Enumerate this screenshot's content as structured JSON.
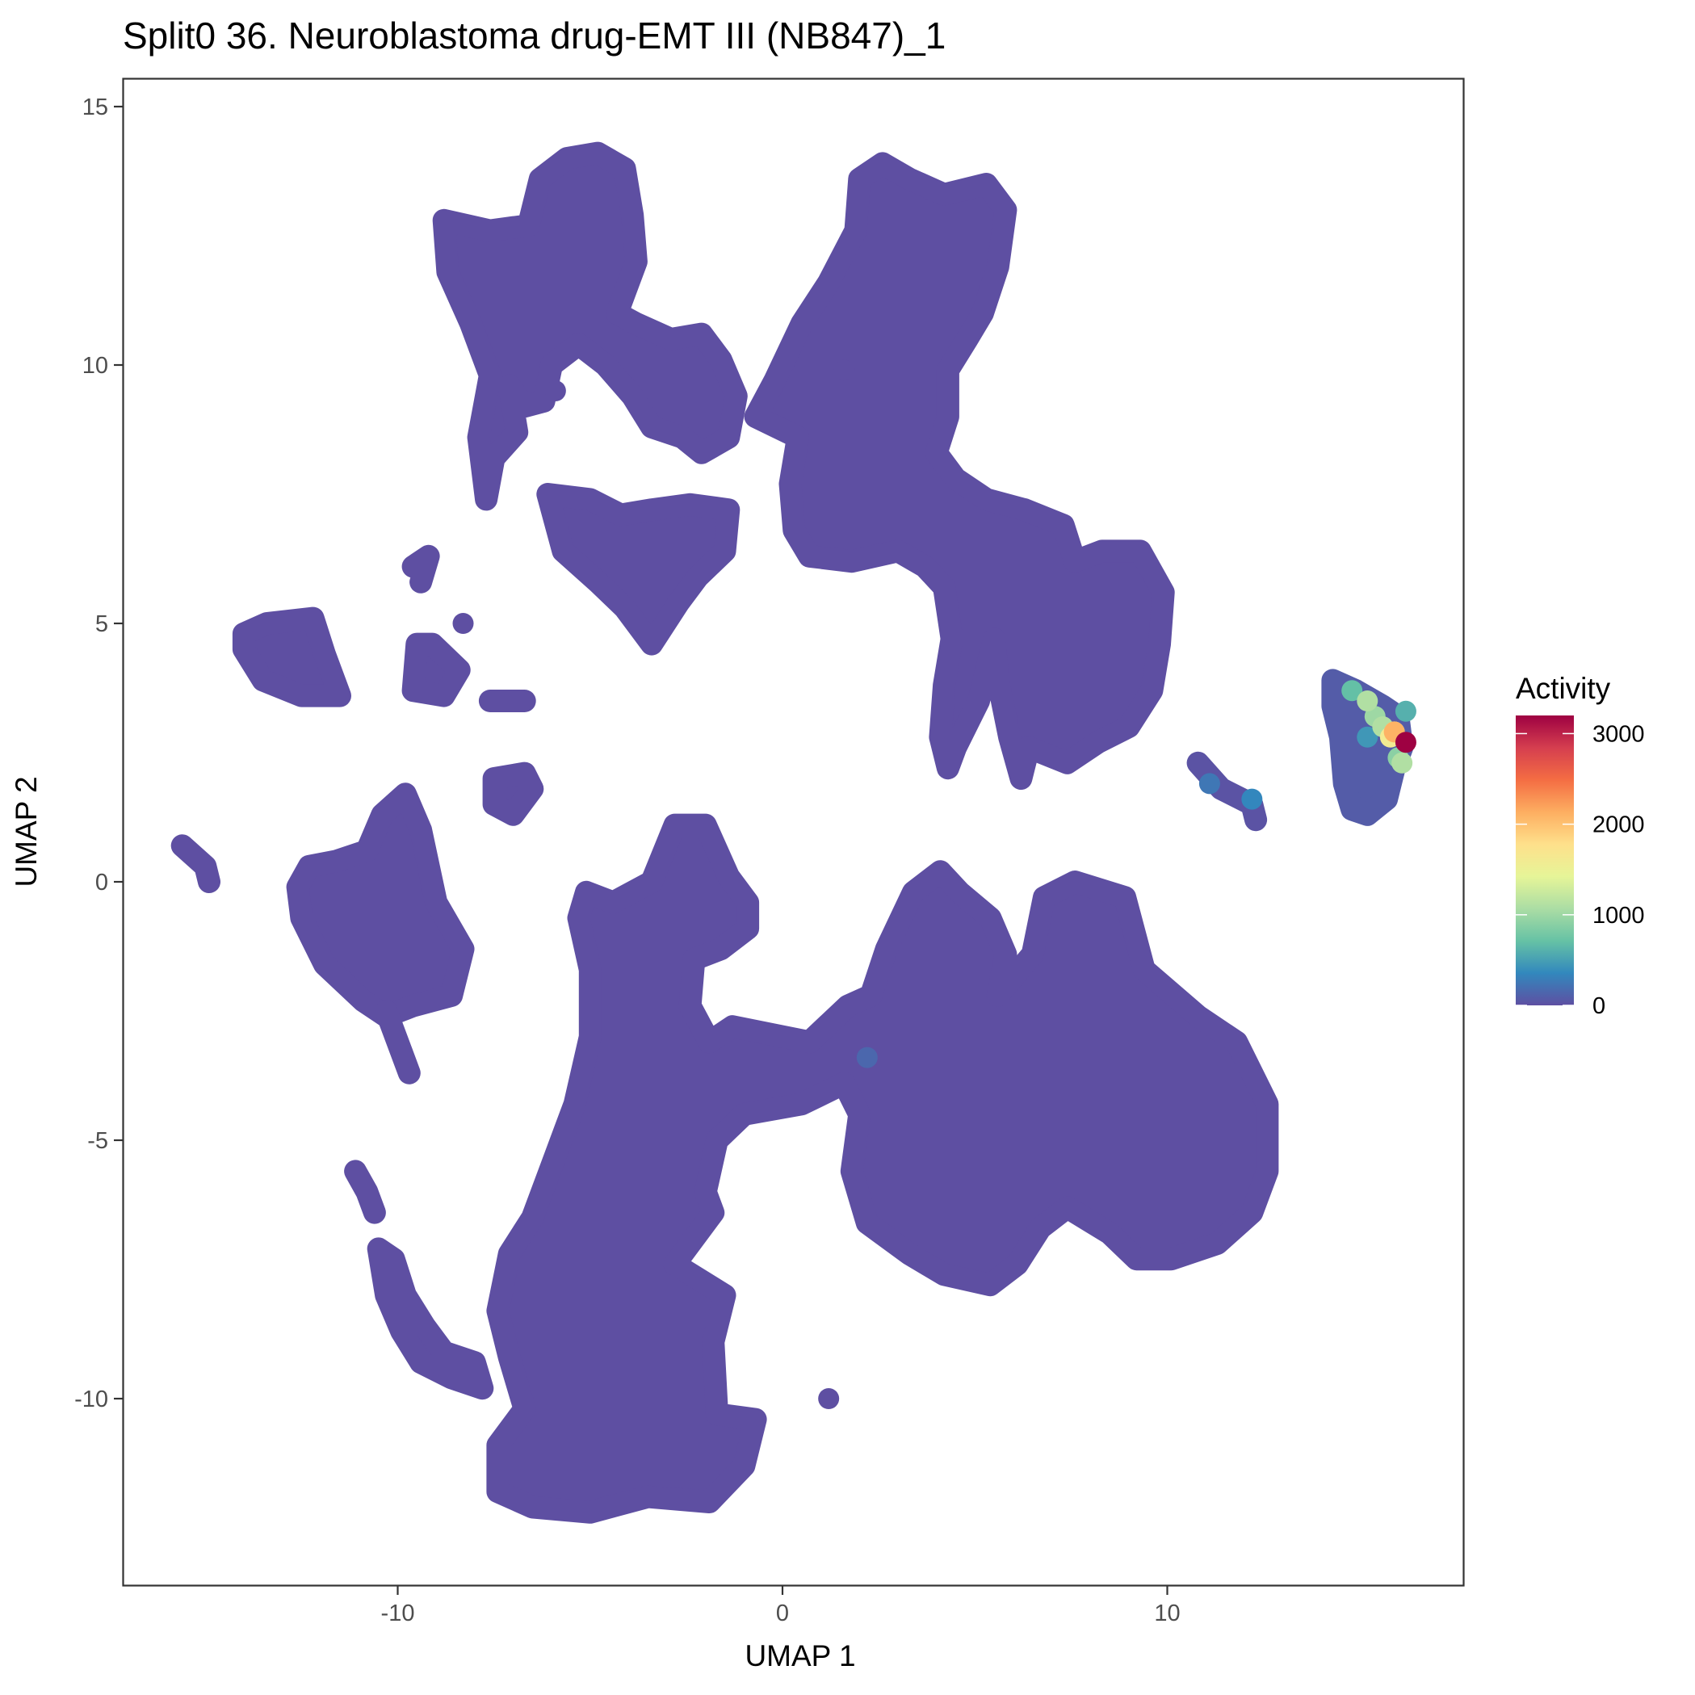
{
  "chart_data": {
    "type": "scatter",
    "title": "Split0 36. Neuroblastoma drug-EMT III (NB847)_1",
    "xlabel": "UMAP 1",
    "ylabel": "UMAP 2",
    "xlim": [
      -17.3,
      17.7
    ],
    "ylim": [
      -13.6,
      15.5
    ],
    "x_ticks": [
      -10,
      0,
      10
    ],
    "x_tick_labels": [
      "-10",
      "0",
      "10"
    ],
    "y_ticks": [
      15,
      10,
      5,
      0,
      -5,
      -10
    ],
    "y_tick_labels": [
      "15",
      "10",
      "5",
      "0",
      "-5",
      "-10"
    ],
    "grid": false,
    "base_point_color": "#5E4FA2",
    "point_radius_px": 13,
    "legend": {
      "title": "Activity",
      "position": "right",
      "type": "colorbar",
      "range": [
        0,
        3200
      ],
      "ticks": [
        0,
        1000,
        2000,
        3000
      ],
      "tick_labels": [
        "0",
        "1000",
        "2000",
        "3000"
      ],
      "palette": "Spectral (reversed)",
      "colors": [
        "#5E4FA2",
        "#3288BD",
        "#66C2A5",
        "#ABDDA4",
        "#E6F598",
        "#FEE08B",
        "#FDAE61",
        "#F46D43",
        "#D53E4F",
        "#9E0142"
      ]
    },
    "clusters": [
      {
        "name": "upper-left-group",
        "activity": 0,
        "outline": [
          [
            -8.8,
            12.8
          ],
          [
            -7.6,
            12.6
          ],
          [
            -6.6,
            12.7
          ],
          [
            -6.3,
            13.6
          ],
          [
            -5.6,
            14.0
          ],
          [
            -4.8,
            14.1
          ],
          [
            -4.1,
            13.8
          ],
          [
            -3.9,
            12.9
          ],
          [
            -3.8,
            12.0
          ],
          [
            -4.1,
            11.4
          ],
          [
            -4.3,
            11.0
          ],
          [
            -3.8,
            10.8
          ],
          [
            -2.9,
            10.5
          ],
          [
            -2.1,
            10.6
          ],
          [
            -1.6,
            10.1
          ],
          [
            -1.2,
            9.4
          ],
          [
            -1.4,
            8.6
          ],
          [
            -2.1,
            8.3
          ],
          [
            -2.6,
            8.6
          ],
          [
            -3.4,
            8.8
          ],
          [
            -3.9,
            9.4
          ],
          [
            -4.6,
            10.0
          ],
          [
            -5.3,
            10.4
          ],
          [
            -6.0,
            10.0
          ],
          [
            -6.2,
            9.3
          ],
          [
            -6.7,
            9.2
          ],
          [
            -7.1,
            9.6
          ],
          [
            -6.9,
            8.7
          ],
          [
            -7.5,
            8.2
          ],
          [
            -7.7,
            7.4
          ],
          [
            -7.9,
            8.6
          ],
          [
            -7.6,
            9.8
          ],
          [
            -8.1,
            10.8
          ],
          [
            -8.7,
            11.8
          ]
        ]
      },
      {
        "name": "upper-left-lower-triangle",
        "activity": 0,
        "outline": [
          [
            -6.1,
            7.5
          ],
          [
            -5.0,
            7.4
          ],
          [
            -4.2,
            7.1
          ],
          [
            -3.4,
            7.2
          ],
          [
            -2.4,
            7.3
          ],
          [
            -1.4,
            7.2
          ],
          [
            -1.5,
            6.4
          ],
          [
            -2.2,
            5.9
          ],
          [
            -2.7,
            5.4
          ],
          [
            -3.4,
            4.6
          ],
          [
            -4.1,
            5.3
          ],
          [
            -4.8,
            5.8
          ],
          [
            -5.7,
            6.4
          ]
        ]
      },
      {
        "name": "upper-right-group",
        "activity": 0,
        "outline": [
          [
            -0.7,
            9.0
          ],
          [
            -0.2,
            9.7
          ],
          [
            0.5,
            10.8
          ],
          [
            1.2,
            11.6
          ],
          [
            1.9,
            12.6
          ],
          [
            2.0,
            13.6
          ],
          [
            2.6,
            13.9
          ],
          [
            3.3,
            13.6
          ],
          [
            4.2,
            13.3
          ],
          [
            5.3,
            13.5
          ],
          [
            5.8,
            13.0
          ],
          [
            5.6,
            11.9
          ],
          [
            5.2,
            11.0
          ],
          [
            4.8,
            10.5
          ],
          [
            4.3,
            9.9
          ],
          [
            4.3,
            9.0
          ],
          [
            4.0,
            8.3
          ],
          [
            4.5,
            7.8
          ],
          [
            5.3,
            7.4
          ],
          [
            6.3,
            7.2
          ],
          [
            7.3,
            6.9
          ],
          [
            7.6,
            6.2
          ],
          [
            8.3,
            6.4
          ],
          [
            9.3,
            6.4
          ],
          [
            9.9,
            5.6
          ],
          [
            9.8,
            4.6
          ],
          [
            9.6,
            3.7
          ],
          [
            9.0,
            3.0
          ],
          [
            8.2,
            2.7
          ],
          [
            7.4,
            2.3
          ],
          [
            6.4,
            2.6
          ],
          [
            6.2,
            2.0
          ],
          [
            5.9,
            2.8
          ],
          [
            5.6,
            3.9
          ],
          [
            5.5,
            4.7
          ],
          [
            5.1,
            3.5
          ],
          [
            4.5,
            2.6
          ],
          [
            4.3,
            2.2
          ],
          [
            4.1,
            2.8
          ],
          [
            4.2,
            3.8
          ],
          [
            4.4,
            4.7
          ],
          [
            4.2,
            5.7
          ],
          [
            3.7,
            6.1
          ],
          [
            3.0,
            6.4
          ],
          [
            1.8,
            6.2
          ],
          [
            0.7,
            6.3
          ],
          [
            0.3,
            6.8
          ],
          [
            0.2,
            7.7
          ],
          [
            0.4,
            8.6
          ]
        ]
      },
      {
        "name": "left-island-a",
        "activity": 0,
        "outline": [
          [
            -14.0,
            4.8
          ],
          [
            -13.4,
            5.0
          ],
          [
            -12.2,
            5.1
          ],
          [
            -11.9,
            4.4
          ],
          [
            -11.5,
            3.6
          ],
          [
            -12.5,
            3.6
          ],
          [
            -13.5,
            3.9
          ],
          [
            -14.0,
            4.5
          ]
        ]
      },
      {
        "name": "left-island-b",
        "activity": 0,
        "outline": [
          [
            -9.5,
            4.6
          ],
          [
            -9.1,
            4.6
          ],
          [
            -8.4,
            4.1
          ],
          [
            -8.8,
            3.6
          ],
          [
            -9.6,
            3.7
          ]
        ]
      },
      {
        "name": "left-island-c",
        "activity": 0,
        "outline": [
          [
            -9.6,
            6.1
          ],
          [
            -9.2,
            6.3
          ],
          [
            -9.4,
            5.8
          ]
        ]
      },
      {
        "name": "left-island-d",
        "activity": 0,
        "outline": [
          [
            -7.6,
            3.5
          ],
          [
            -7.0,
            3.5
          ],
          [
            -6.7,
            3.5
          ]
        ]
      },
      {
        "name": "left-island-e",
        "activity": 0,
        "outline": [
          [
            -7.5,
            2.0
          ],
          [
            -6.7,
            2.1
          ],
          [
            -6.5,
            1.8
          ],
          [
            -7.0,
            1.3
          ],
          [
            -7.5,
            1.5
          ]
        ]
      },
      {
        "name": "far-left-strand",
        "activity": 0,
        "outline": [
          [
            -15.6,
            0.7
          ],
          [
            -15.0,
            0.3
          ],
          [
            -14.9,
            0.0
          ]
        ]
      },
      {
        "name": "mid-left-cluster",
        "activity": 0,
        "outline": [
          [
            -12.3,
            0.3
          ],
          [
            -11.6,
            0.4
          ],
          [
            -10.8,
            0.6
          ],
          [
            -10.4,
            1.3
          ],
          [
            -9.8,
            1.7
          ],
          [
            -9.4,
            1.0
          ],
          [
            -9.0,
            -0.4
          ],
          [
            -8.3,
            -1.3
          ],
          [
            -8.6,
            -2.2
          ],
          [
            -9.6,
            -2.4
          ],
          [
            -10.3,
            -2.6
          ],
          [
            -10.9,
            -2.3
          ],
          [
            -11.9,
            -1.6
          ],
          [
            -12.5,
            -0.7
          ],
          [
            -12.6,
            -0.1
          ]
        ]
      },
      {
        "name": "mid-left-tail",
        "activity": 0,
        "outline": [
          [
            -10.3,
            -2.5
          ],
          [
            -9.9,
            -3.3
          ],
          [
            -9.7,
            -3.7
          ]
        ]
      },
      {
        "name": "bottom-left-strand",
        "activity": 0,
        "outline": [
          [
            -11.1,
            -5.6
          ],
          [
            -10.8,
            -6.0
          ],
          [
            -10.6,
            -6.4
          ]
        ]
      },
      {
        "name": "bottom-left-curve",
        "activity": 0,
        "outline": [
          [
            -10.5,
            -7.1
          ],
          [
            -10.3,
            -8.0
          ],
          [
            -9.9,
            -8.7
          ],
          [
            -9.4,
            -9.3
          ],
          [
            -8.6,
            -9.6
          ],
          [
            -7.8,
            -9.8
          ],
          [
            -8.0,
            -9.3
          ],
          [
            -8.8,
            -9.1
          ],
          [
            -9.3,
            -8.6
          ],
          [
            -9.8,
            -8.0
          ],
          [
            -10.1,
            -7.3
          ]
        ]
      },
      {
        "name": "bottom-center-large",
        "activity": 0,
        "outline": [
          [
            -5.1,
            -0.2
          ],
          [
            -4.4,
            -0.4
          ],
          [
            -3.4,
            0.0
          ],
          [
            -2.8,
            1.1
          ],
          [
            -2.0,
            1.1
          ],
          [
            -1.4,
            0.1
          ],
          [
            -0.9,
            -0.4
          ],
          [
            -0.9,
            -0.9
          ],
          [
            -1.6,
            -1.3
          ],
          [
            -2.3,
            -1.5
          ],
          [
            -2.4,
            -2.4
          ],
          [
            -1.9,
            -3.1
          ],
          [
            -1.3,
            -2.8
          ],
          [
            0.7,
            -3.1
          ],
          [
            1.7,
            -2.4
          ],
          [
            2.3,
            -2.2
          ],
          [
            2.7,
            -1.3
          ],
          [
            3.4,
            -0.2
          ],
          [
            4.1,
            0.2
          ],
          [
            4.6,
            -0.2
          ],
          [
            5.4,
            -0.7
          ],
          [
            5.8,
            -1.4
          ],
          [
            5.6,
            -2.2
          ],
          [
            6.5,
            -1.4
          ],
          [
            6.8,
            -0.3
          ],
          [
            7.6,
            0.0
          ],
          [
            8.9,
            -0.3
          ],
          [
            9.4,
            -1.7
          ],
          [
            10.8,
            -2.6
          ],
          [
            11.8,
            -3.1
          ],
          [
            12.6,
            -4.3
          ],
          [
            12.6,
            -5.6
          ],
          [
            12.2,
            -6.4
          ],
          [
            11.3,
            -7.0
          ],
          [
            10.1,
            -7.3
          ],
          [
            9.2,
            -7.3
          ],
          [
            8.5,
            -6.8
          ],
          [
            7.4,
            -6.3
          ],
          [
            6.7,
            -6.7
          ],
          [
            6.1,
            -7.4
          ],
          [
            5.4,
            -7.8
          ],
          [
            4.2,
            -7.6
          ],
          [
            3.3,
            -7.2
          ],
          [
            2.2,
            -6.6
          ],
          [
            1.8,
            -5.6
          ],
          [
            2.0,
            -4.5
          ],
          [
            1.6,
            -3.9
          ],
          [
            0.5,
            -4.3
          ],
          [
            -1.0,
            -4.5
          ],
          [
            -1.7,
            -5.0
          ],
          [
            -2.0,
            -6.0
          ],
          [
            -1.8,
            -6.4
          ],
          [
            -2.8,
            -7.4
          ],
          [
            -1.5,
            -8.0
          ],
          [
            -1.8,
            -8.9
          ],
          [
            -1.7,
            -10.3
          ],
          [
            -0.7,
            -10.4
          ],
          [
            -1.0,
            -11.3
          ],
          [
            -1.9,
            -12.0
          ],
          [
            -3.5,
            -11.9
          ],
          [
            -5.0,
            -12.2
          ],
          [
            -6.5,
            -12.1
          ],
          [
            -7.4,
            -11.8
          ],
          [
            -7.4,
            -10.9
          ],
          [
            -6.7,
            -10.2
          ],
          [
            -7.1,
            -9.2
          ],
          [
            -7.4,
            -8.3
          ],
          [
            -7.1,
            -7.2
          ],
          [
            -6.5,
            -6.5
          ],
          [
            -5.9,
            -5.3
          ],
          [
            -5.4,
            -4.3
          ],
          [
            -5.0,
            -3.0
          ],
          [
            -5.0,
            -1.7
          ],
          [
            -5.3,
            -0.7
          ]
        ]
      },
      {
        "name": "right-strand",
        "activity": 60,
        "outline": [
          [
            10.8,
            2.3
          ],
          [
            11.4,
            1.8
          ],
          [
            12.2,
            1.5
          ],
          [
            12.3,
            1.2
          ]
        ]
      },
      {
        "name": "far-right-cluster",
        "activity": 200,
        "outline": [
          [
            14.3,
            3.9
          ],
          [
            14.9,
            3.7
          ],
          [
            15.6,
            3.4
          ],
          [
            16.0,
            3.2
          ],
          [
            16.1,
            2.6
          ],
          [
            15.9,
            2.2
          ],
          [
            15.7,
            1.6
          ],
          [
            15.2,
            1.3
          ],
          [
            14.8,
            1.4
          ],
          [
            14.6,
            1.9
          ],
          [
            14.5,
            2.8
          ],
          [
            14.3,
            3.4
          ]
        ]
      }
    ],
    "highlighted_points": [
      {
        "x": 14.8,
        "y": 3.7,
        "activity": 700
      },
      {
        "x": 15.2,
        "y": 3.5,
        "activity": 1100
      },
      {
        "x": 15.4,
        "y": 3.2,
        "activity": 1000
      },
      {
        "x": 15.6,
        "y": 3.0,
        "activity": 1100
      },
      {
        "x": 16.2,
        "y": 3.3,
        "activity": 600
      },
      {
        "x": 15.9,
        "y": 2.9,
        "activity": 1500
      },
      {
        "x": 15.8,
        "y": 2.8,
        "activity": 1600
      },
      {
        "x": 15.9,
        "y": 2.9,
        "activity": 2100
      },
      {
        "x": 16.0,
        "y": 2.4,
        "activity": 900
      },
      {
        "x": 16.1,
        "y": 2.3,
        "activity": 1100
      },
      {
        "x": 15.2,
        "y": 2.8,
        "activity": 450
      },
      {
        "x": 12.2,
        "y": 1.6,
        "activity": 350
      },
      {
        "x": 11.1,
        "y": 1.9,
        "activity": 250
      },
      {
        "x": 2.2,
        "y": -3.4,
        "activity": 150
      },
      {
        "x": 16.2,
        "y": 2.7,
        "activity": 3200
      }
    ],
    "isolated_points": [
      {
        "x": 1.2,
        "y": -10.0
      },
      {
        "x": -5.9,
        "y": 9.5
      },
      {
        "x": -8.3,
        "y": 5.0
      },
      {
        "x": 1.6,
        "y": 9.9
      }
    ]
  }
}
